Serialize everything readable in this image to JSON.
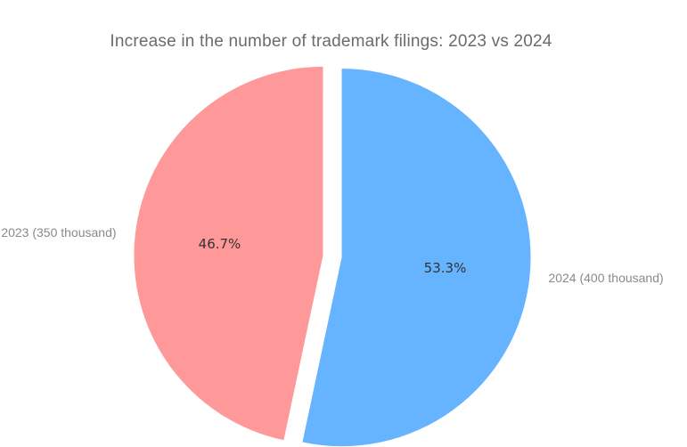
{
  "chart_data": {
    "type": "pie",
    "title": "Increase in the number of trademark filings: 2023 vs 2024",
    "slices": [
      {
        "label": "2023 (350 thousand)",
        "value": 350,
        "percent_label": "46.7%",
        "color": "#ff9999",
        "exploded": true
      },
      {
        "label": "2024 (400 thousand)",
        "value": 400,
        "percent_label": "53.3%",
        "color": "#66b3ff",
        "exploded": true
      }
    ],
    "start_angle_deg": 90,
    "direction": "counterclockwise",
    "legend": "none"
  }
}
